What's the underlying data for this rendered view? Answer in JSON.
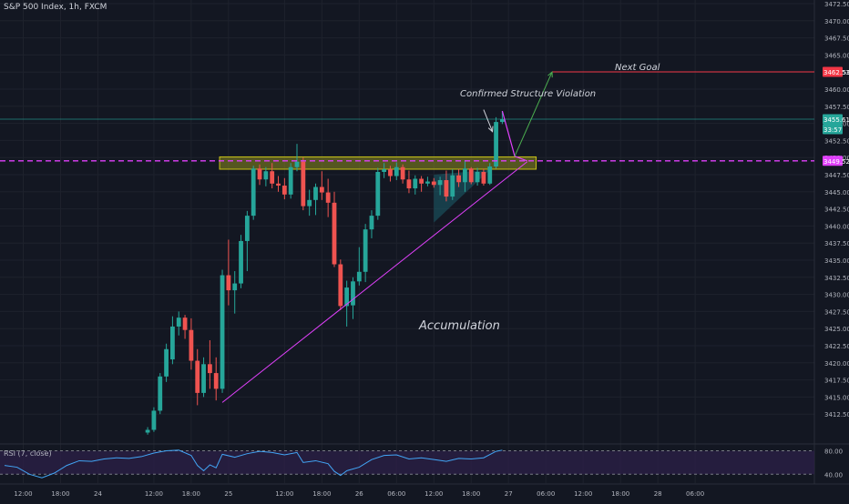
{
  "header": {
    "symbol_title": "S&P 500 Index, 1h, FXCM"
  },
  "rsi_panel": {
    "title": "RSI (7, close)",
    "levels": [
      "80.00",
      "40.00"
    ]
  },
  "colors": {
    "background": "#131722",
    "up": "#26a69a",
    "down": "#ef5350",
    "grid": "#1e222d",
    "accent_magenta": "#e040fb",
    "target_red": "#f23645",
    "zone_fill": "#8d8a1f",
    "zone_border": "#c9c217",
    "rsi_line": "#42a5f5",
    "rsi_fill": "#2a1f46",
    "arrow_green": "#4caf50"
  },
  "annotations": {
    "structure_violation": "Confirmed Structure Violation",
    "next_goal": "Next Goal",
    "accumulation": "Accumulation"
  },
  "price_badges": {
    "target": "3462.53",
    "current": "3455.61",
    "countdown": "33:57",
    "level": "3449.52"
  },
  "chart_data": {
    "type": "candlestick",
    "title": "S&P 500 Index, 1h, FXCM",
    "xlabel": "",
    "ylabel": "",
    "ylim": [
      3410,
      3472.5
    ],
    "y_ticks": [
      "3472.50",
      "3470.00",
      "3467.50",
      "3465.00",
      "3462.50",
      "3460.00",
      "3457.50",
      "3455.00",
      "3452.50",
      "3450.00",
      "3447.50",
      "3445.00",
      "3442.50",
      "3440.00",
      "3437.50",
      "3435.00",
      "3432.50",
      "3430.00",
      "3427.50",
      "3425.00",
      "3422.50",
      "3420.00",
      "3417.50",
      "3415.00",
      "3412.50"
    ],
    "x_ticks": [
      {
        "label": "12:00",
        "bar": 3
      },
      {
        "label": "18:00",
        "bar": 9
      },
      {
        "label": "24",
        "bar": 15
      },
      {
        "label": "12:00",
        "bar": 24
      },
      {
        "label": "18:00",
        "bar": 30
      },
      {
        "label": "25",
        "bar": 36
      },
      {
        "label": "12:00",
        "bar": 45
      },
      {
        "label": "18:00",
        "bar": 51
      },
      {
        "label": "26",
        "bar": 57
      },
      {
        "label": "06:00",
        "bar": 63
      },
      {
        "label": "12:00",
        "bar": 69
      },
      {
        "label": "18:00",
        "bar": 75
      },
      {
        "label": "27",
        "bar": 81
      },
      {
        "label": "06:00",
        "bar": 87
      },
      {
        "label": "12:00",
        "bar": 93
      },
      {
        "label": "18:00",
        "bar": 99
      },
      {
        "label": "28",
        "bar": 105
      },
      {
        "label": "06:00",
        "bar": 111
      }
    ],
    "candles": [
      {
        "bar": 23,
        "o": 3409.8,
        "h": 3410.6,
        "l": 3409.5,
        "c": 3410.2
      },
      {
        "bar": 24,
        "o": 3410.2,
        "h": 3413.5,
        "l": 3409.9,
        "c": 3413.0
      },
      {
        "bar": 25,
        "o": 3413.0,
        "h": 3418.5,
        "l": 3412.5,
        "c": 3418.0
      },
      {
        "bar": 26,
        "o": 3418.0,
        "h": 3422.8,
        "l": 3417.2,
        "c": 3422.0
      },
      {
        "bar": 27,
        "o": 3420.5,
        "h": 3426.8,
        "l": 3419.8,
        "c": 3425.3
      },
      {
        "bar": 28,
        "o": 3425.3,
        "h": 3427.5,
        "l": 3424.0,
        "c": 3426.6
      },
      {
        "bar": 29,
        "o": 3426.6,
        "h": 3427.0,
        "l": 3423.5,
        "c": 3424.8
      },
      {
        "bar": 30,
        "o": 3424.8,
        "h": 3426.5,
        "l": 3419.0,
        "c": 3420.3
      },
      {
        "bar": 31,
        "o": 3420.3,
        "h": 3422.0,
        "l": 3413.8,
        "c": 3415.6
      },
      {
        "bar": 32,
        "o": 3415.6,
        "h": 3420.8,
        "l": 3415.0,
        "c": 3419.8
      },
      {
        "bar": 33,
        "o": 3419.8,
        "h": 3423.3,
        "l": 3416.2,
        "c": 3418.5
      },
      {
        "bar": 34,
        "o": 3418.5,
        "h": 3420.8,
        "l": 3414.5,
        "c": 3416.2
      },
      {
        "bar": 35,
        "o": 3416.2,
        "h": 3433.6,
        "l": 3415.6,
        "c": 3432.8
      },
      {
        "bar": 36,
        "o": 3432.8,
        "h": 3438.0,
        "l": 3428.4,
        "c": 3430.6
      },
      {
        "bar": 37,
        "o": 3430.6,
        "h": 3433.4,
        "l": 3427.2,
        "c": 3431.6
      },
      {
        "bar": 38,
        "o": 3431.6,
        "h": 3438.7,
        "l": 3430.9,
        "c": 3437.8
      },
      {
        "bar": 39,
        "o": 3437.8,
        "h": 3442.2,
        "l": 3433.4,
        "c": 3441.5
      },
      {
        "bar": 40,
        "o": 3441.5,
        "h": 3448.8,
        "l": 3440.9,
        "c": 3448.4
      },
      {
        "bar": 41,
        "o": 3448.4,
        "h": 3449.0,
        "l": 3446.0,
        "c": 3446.8
      },
      {
        "bar": 42,
        "o": 3446.8,
        "h": 3448.6,
        "l": 3445.8,
        "c": 3448.0
      },
      {
        "bar": 43,
        "o": 3448.0,
        "h": 3449.2,
        "l": 3445.5,
        "c": 3446.2
      },
      {
        "bar": 44,
        "o": 3446.2,
        "h": 3447.3,
        "l": 3445.0,
        "c": 3445.9
      },
      {
        "bar": 45,
        "o": 3445.9,
        "h": 3447.0,
        "l": 3443.9,
        "c": 3444.6
      },
      {
        "bar": 46,
        "o": 3444.6,
        "h": 3449.2,
        "l": 3444.0,
        "c": 3448.6
      },
      {
        "bar": 47,
        "o": 3448.6,
        "h": 3452.0,
        "l": 3448.0,
        "c": 3449.4
      },
      {
        "bar": 48,
        "o": 3449.4,
        "h": 3450.0,
        "l": 3442.3,
        "c": 3442.9
      },
      {
        "bar": 49,
        "o": 3442.9,
        "h": 3445.3,
        "l": 3441.5,
        "c": 3443.8
      },
      {
        "bar": 50,
        "o": 3443.8,
        "h": 3446.2,
        "l": 3441.6,
        "c": 3445.7
      },
      {
        "bar": 51,
        "o": 3445.7,
        "h": 3448.0,
        "l": 3443.8,
        "c": 3444.9
      },
      {
        "bar": 52,
        "o": 3444.9,
        "h": 3446.9,
        "l": 3441.3,
        "c": 3443.4
      },
      {
        "bar": 53,
        "o": 3443.4,
        "h": 3445.0,
        "l": 3434.0,
        "c": 3434.4
      },
      {
        "bar": 54,
        "o": 3434.4,
        "h": 3435.1,
        "l": 3427.7,
        "c": 3428.3
      },
      {
        "bar": 55,
        "o": 3428.3,
        "h": 3432.0,
        "l": 3425.3,
        "c": 3431.0
      },
      {
        "bar": 56,
        "o": 3428.4,
        "h": 3432.5,
        "l": 3426.4,
        "c": 3431.9
      },
      {
        "bar": 57,
        "o": 3431.9,
        "h": 3436.9,
        "l": 3431.3,
        "c": 3433.3
      },
      {
        "bar": 58,
        "o": 3433.3,
        "h": 3440.3,
        "l": 3431.8,
        "c": 3439.5
      },
      {
        "bar": 59,
        "o": 3439.5,
        "h": 3442.3,
        "l": 3438.2,
        "c": 3441.5
      },
      {
        "bar": 60,
        "o": 3441.5,
        "h": 3448.5,
        "l": 3440.9,
        "c": 3447.9
      },
      {
        "bar": 61,
        "o": 3447.9,
        "h": 3449.2,
        "l": 3447.0,
        "c": 3448.3
      },
      {
        "bar": 62,
        "o": 3448.3,
        "h": 3448.8,
        "l": 3446.5,
        "c": 3447.3
      },
      {
        "bar": 63,
        "o": 3447.3,
        "h": 3449.3,
        "l": 3446.7,
        "c": 3448.6
      },
      {
        "bar": 64,
        "o": 3448.6,
        "h": 3449.0,
        "l": 3446.2,
        "c": 3446.8
      },
      {
        "bar": 65,
        "o": 3446.8,
        "h": 3448.1,
        "l": 3444.8,
        "c": 3445.5
      },
      {
        "bar": 66,
        "o": 3445.5,
        "h": 3447.4,
        "l": 3444.6,
        "c": 3446.9
      },
      {
        "bar": 67,
        "o": 3446.9,
        "h": 3447.3,
        "l": 3445.0,
        "c": 3446.2
      },
      {
        "bar": 68,
        "o": 3446.2,
        "h": 3447.2,
        "l": 3445.8,
        "c": 3446.5
      },
      {
        "bar": 69,
        "o": 3446.5,
        "h": 3447.0,
        "l": 3445.6,
        "c": 3446.0
      },
      {
        "bar": 70,
        "o": 3446.0,
        "h": 3447.2,
        "l": 3444.5,
        "c": 3446.7
      },
      {
        "bar": 71,
        "o": 3446.7,
        "h": 3448.1,
        "l": 3443.6,
        "c": 3444.3
      },
      {
        "bar": 72,
        "o": 3444.3,
        "h": 3448.3,
        "l": 3443.8,
        "c": 3447.4
      },
      {
        "bar": 73,
        "o": 3447.4,
        "h": 3448.3,
        "l": 3445.7,
        "c": 3446.4
      },
      {
        "bar": 74,
        "o": 3446.4,
        "h": 3449.6,
        "l": 3445.0,
        "c": 3448.4
      },
      {
        "bar": 75,
        "o": 3448.4,
        "h": 3448.6,
        "l": 3446.1,
        "c": 3446.4
      },
      {
        "bar": 76,
        "o": 3446.4,
        "h": 3448.5,
        "l": 3445.9,
        "c": 3447.9
      },
      {
        "bar": 77,
        "o": 3447.9,
        "h": 3448.4,
        "l": 3445.9,
        "c": 3446.2
      },
      {
        "bar": 78,
        "o": 3446.2,
        "h": 3449.2,
        "l": 3446.0,
        "c": 3448.7
      },
      {
        "bar": 79,
        "o": 3448.7,
        "h": 3455.9,
        "l": 3448.4,
        "c": 3455.2
      },
      {
        "bar": 80,
        "o": 3455.2,
        "h": 3456.8,
        "l": 3454.9,
        "c": 3455.6
      }
    ],
    "rsi": {
      "name": "RSI (7, close)",
      "ylim": [
        25,
        90
      ],
      "levels": [
        80,
        40
      ],
      "values": [
        {
          "bar": 0,
          "v": 55
        },
        {
          "bar": 2,
          "v": 52
        },
        {
          "bar": 4,
          "v": 40
        },
        {
          "bar": 6,
          "v": 34
        },
        {
          "bar": 8,
          "v": 42
        },
        {
          "bar": 10,
          "v": 55
        },
        {
          "bar": 12,
          "v": 63
        },
        {
          "bar": 14,
          "v": 62
        },
        {
          "bar": 16,
          "v": 66
        },
        {
          "bar": 18,
          "v": 68
        },
        {
          "bar": 20,
          "v": 67
        },
        {
          "bar": 22,
          "v": 70
        },
        {
          "bar": 24,
          "v": 76
        },
        {
          "bar": 26,
          "v": 80
        },
        {
          "bar": 28,
          "v": 81
        },
        {
          "bar": 30,
          "v": 72
        },
        {
          "bar": 31,
          "v": 55
        },
        {
          "bar": 32,
          "v": 46
        },
        {
          "bar": 33,
          "v": 56
        },
        {
          "bar": 34,
          "v": 51
        },
        {
          "bar": 35,
          "v": 74
        },
        {
          "bar": 37,
          "v": 69
        },
        {
          "bar": 39,
          "v": 75
        },
        {
          "bar": 41,
          "v": 79
        },
        {
          "bar": 43,
          "v": 77
        },
        {
          "bar": 45,
          "v": 73
        },
        {
          "bar": 47,
          "v": 77
        },
        {
          "bar": 48,
          "v": 60
        },
        {
          "bar": 50,
          "v": 63
        },
        {
          "bar": 52,
          "v": 58
        },
        {
          "bar": 53,
          "v": 45
        },
        {
          "bar": 54,
          "v": 38
        },
        {
          "bar": 55,
          "v": 46
        },
        {
          "bar": 57,
          "v": 52
        },
        {
          "bar": 59,
          "v": 65
        },
        {
          "bar": 61,
          "v": 72
        },
        {
          "bar": 63,
          "v": 73
        },
        {
          "bar": 65,
          "v": 66
        },
        {
          "bar": 67,
          "v": 68
        },
        {
          "bar": 69,
          "v": 65
        },
        {
          "bar": 71,
          "v": 62
        },
        {
          "bar": 73,
          "v": 67
        },
        {
          "bar": 75,
          "v": 66
        },
        {
          "bar": 77,
          "v": 68
        },
        {
          "bar": 79,
          "v": 79
        },
        {
          "bar": 80,
          "v": 81
        }
      ]
    },
    "drawings": {
      "trendline": {
        "from": {
          "bar": 35,
          "price": 3414.2
        },
        "to": {
          "bar": 84,
          "price": 3449.4
        }
      },
      "resistance_zone": {
        "bar_from": 35,
        "bar_to": 85,
        "price_low": 3448.3,
        "price_high": 3450.1
      },
      "dashed_level": 3449.52,
      "current_price": 3455.61,
      "target_price": 3462.53,
      "triangle": {
        "points": [
          {
            "bar": 69,
            "price": 3440.5
          },
          {
            "bar": 69,
            "price": 3447.5
          },
          {
            "bar": 78,
            "price": 3448.2
          }
        ]
      },
      "projection": [
        {
          "bar": 80,
          "price": 3456.8
        },
        {
          "bar": 82,
          "price": 3450.2
        },
        {
          "bar": 84,
          "price": 3449.5
        }
      ],
      "goal_arrow": {
        "from": {
          "bar": 82,
          "price": 3450.2
        },
        "to": {
          "bar": 88,
          "price": 3462.5
        }
      },
      "violation_arrow": {
        "from": {
          "bar": 77,
          "price": 3457.0
        },
        "to": {
          "bar": 79,
          "price": 3453.8
        }
      }
    }
  }
}
